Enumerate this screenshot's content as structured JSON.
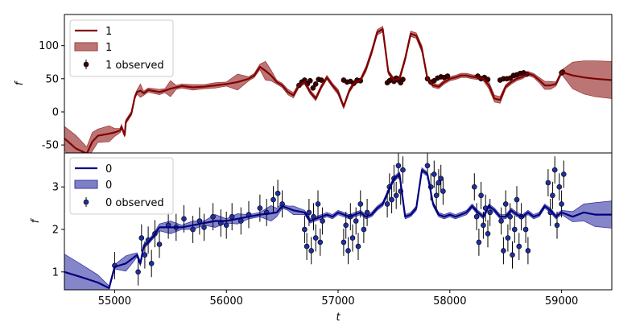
{
  "chart_data": [
    {
      "type": "line",
      "xlabel": "",
      "ylabel": "f",
      "xlim": [
        54550,
        59450
      ],
      "ylim": [
        -62,
        147
      ],
      "yticks": [
        -50,
        0,
        50,
        100
      ],
      "legend_position": "upper-left",
      "legend": [
        "1",
        "1",
        "1 observed"
      ],
      "colors": {
        "line": "#800000",
        "band": "#a03a3a",
        "points": "#400000"
      },
      "series": [
        {
          "name": "1",
          "kind": "prediction",
          "x": [
            54550,
            54650,
            54750,
            54800,
            54850,
            54950,
            55000,
            55050,
            55060,
            55090,
            55100,
            55150,
            55180,
            55200,
            55230,
            55260,
            55300,
            55400,
            55450,
            55500,
            55550,
            55600,
            55700,
            55800,
            55900,
            56000,
            56100,
            56200,
            56250,
            56300,
            56350,
            56400,
            56450,
            56500,
            56550,
            56600,
            56650,
            56700,
            56750,
            56800,
            56850,
            56900,
            56950,
            57000,
            57050,
            57100,
            57150,
            57200,
            57250,
            57300,
            57350,
            57400,
            57450,
            57500,
            57550,
            57600,
            57650,
            57700,
            57750,
            57800,
            57850,
            57900,
            57950,
            58000,
            58050,
            58100,
            58150,
            58200,
            58250,
            58300,
            58350,
            58400,
            58450,
            58500,
            58550,
            58600,
            58650,
            58700,
            58750,
            58800,
            58850,
            58900,
            58950,
            59000,
            59100,
            59200,
            59300,
            59450
          ],
          "y": [
            -40,
            -55,
            -63,
            -45,
            -36,
            -33,
            -31,
            -28,
            -22,
            -35,
            -15,
            -2,
            22,
            30,
            32,
            28,
            33,
            30,
            32,
            35,
            37,
            39,
            37,
            38,
            40,
            42,
            45,
            50,
            55,
            68,
            62,
            55,
            45,
            40,
            30,
            25,
            40,
            45,
            30,
            20,
            38,
            52,
            40,
            30,
            8,
            32,
            45,
            48,
            65,
            90,
            120,
            125,
            60,
            48,
            50,
            80,
            118,
            115,
            95,
            50,
            40,
            38,
            45,
            50,
            52,
            55,
            55,
            53,
            52,
            50,
            40,
            20,
            18,
            38,
            45,
            50,
            53,
            58,
            55,
            48,
            40,
            40,
            42,
            60,
            55,
            52,
            50,
            48
          ]
        },
        {
          "name": "1",
          "kind": "uncertainty",
          "x": [
            54550,
            54650,
            54750,
            54800,
            54850,
            54950,
            55000,
            55050,
            55060,
            55090,
            55100,
            55150,
            55180,
            55200,
            55230,
            55260,
            55300,
            55400,
            55450,
            55500,
            55550,
            55600,
            55700,
            55800,
            55900,
            56000,
            56100,
            56200,
            56250,
            56300,
            56350,
            56400,
            56450,
            56500,
            56550,
            56600,
            56650,
            56700,
            56750,
            56800,
            56850,
            56900,
            56950,
            57000,
            57050,
            57100,
            57150,
            57200,
            57250,
            57300,
            57350,
            57400,
            57450,
            57500,
            57550,
            57600,
            57650,
            57700,
            57750,
            57800,
            57850,
            57900,
            57950,
            58000,
            58050,
            58100,
            58150,
            58200,
            58250,
            58300,
            58350,
            58400,
            58450,
            58500,
            58550,
            58600,
            58650,
            58700,
            58750,
            58800,
            58850,
            58900,
            58950,
            59000,
            59100,
            59200,
            59300,
            59450
          ],
          "half_width": [
            18,
            20,
            10,
            14,
            10,
            12,
            6,
            3,
            3,
            3,
            3,
            3,
            3,
            3,
            10,
            3,
            3,
            4,
            3,
            12,
            3,
            3,
            4,
            3,
            4,
            3,
            12,
            3,
            3,
            4,
            14,
            8,
            3,
            3,
            4,
            4,
            3,
            3,
            3,
            3,
            3,
            3,
            3,
            4,
            3,
            3,
            3,
            3,
            4,
            4,
            4,
            4,
            3,
            3,
            4,
            4,
            4,
            4,
            5,
            3,
            3,
            3,
            3,
            3,
            3,
            3,
            3,
            3,
            3,
            3,
            5,
            5,
            5,
            3,
            3,
            3,
            3,
            3,
            3,
            4,
            6,
            6,
            3,
            3,
            20,
            25,
            27,
            28
          ]
        },
        {
          "name": "1 observed",
          "kind": "observed",
          "x": [
            56650,
            56675,
            56700,
            56725,
            56750,
            56775,
            56800,
            56825,
            56850,
            57050,
            57080,
            57110,
            57140,
            57170,
            57200,
            57440,
            57460,
            57480,
            57500,
            57520,
            57540,
            57560,
            57580,
            57800,
            57830,
            57860,
            57890,
            57920,
            57950,
            57980,
            58250,
            58280,
            58310,
            58340,
            58450,
            58480,
            58510,
            58540,
            58570,
            58600,
            58630,
            58660,
            58690,
            59000,
            59010
          ],
          "y": [
            40,
            45,
            48,
            42,
            47,
            36,
            42,
            49,
            48,
            48,
            45,
            46,
            43,
            48,
            47,
            44,
            47,
            49,
            46,
            51,
            48,
            44,
            49,
            50,
            45,
            47,
            51,
            53,
            52,
            54,
            54,
            50,
            52,
            49,
            48,
            50,
            50,
            51,
            55,
            56,
            58,
            59,
            57,
            59,
            60
          ]
        }
      ]
    },
    {
      "type": "line",
      "xlabel": "t",
      "ylabel": "f",
      "xlim": [
        54550,
        59450
      ],
      "ylim": [
        0.58,
        3.8
      ],
      "xticks": [
        55000,
        56000,
        57000,
        58000,
        59000
      ],
      "yticks": [
        1,
        2,
        3
      ],
      "legend_position": "upper-left",
      "legend": [
        "0",
        "0",
        "0 observed"
      ],
      "colors": {
        "line": "#000080",
        "band": "#3a3aa8",
        "points": "#1f2fa0"
      },
      "series": [
        {
          "name": "0",
          "kind": "prediction",
          "x": [
            54550,
            54700,
            54850,
            54950,
            55000,
            55100,
            55150,
            55200,
            55230,
            55260,
            55300,
            55350,
            55400,
            55500,
            55600,
            55700,
            55800,
            55900,
            56000,
            56100,
            56200,
            56300,
            56400,
            56450,
            56500,
            56550,
            56600,
            56700,
            56750,
            56800,
            56850,
            56900,
            56950,
            57000,
            57050,
            57100,
            57150,
            57200,
            57250,
            57300,
            57350,
            57400,
            57450,
            57500,
            57550,
            57600,
            57650,
            57700,
            57750,
            57800,
            57850,
            57900,
            57950,
            58000,
            58050,
            58100,
            58150,
            58200,
            58250,
            58300,
            58350,
            58400,
            58450,
            58500,
            58550,
            58600,
            58650,
            58700,
            58750,
            58800,
            58850,
            58900,
            58950,
            59000,
            59100,
            59200,
            59300,
            59450
          ],
          "y": [
            1.0,
            0.88,
            0.75,
            0.62,
            1.12,
            1.2,
            1.3,
            1.4,
            1.2,
            1.6,
            1.7,
            1.85,
            2.05,
            2.05,
            2.05,
            2.1,
            2.15,
            2.2,
            2.2,
            2.25,
            2.3,
            2.35,
            2.38,
            2.4,
            2.55,
            2.5,
            2.45,
            2.4,
            2.2,
            2.25,
            2.3,
            2.35,
            2.3,
            2.4,
            2.35,
            2.3,
            2.35,
            2.4,
            2.3,
            2.35,
            2.5,
            2.6,
            2.9,
            3.2,
            3.3,
            2.3,
            2.35,
            2.5,
            3.4,
            3.3,
            2.6,
            2.35,
            2.3,
            2.35,
            2.3,
            2.35,
            2.4,
            2.55,
            2.4,
            2.3,
            2.55,
            2.45,
            2.3,
            2.3,
            2.45,
            2.35,
            2.3,
            2.4,
            2.3,
            2.35,
            2.55,
            2.45,
            2.3,
            2.4,
            2.3,
            2.4,
            2.35,
            2.35
          ]
        },
        {
          "name": "0",
          "kind": "uncertainty",
          "x": [
            54550,
            54700,
            54850,
            54950,
            55000,
            55100,
            55150,
            55200,
            55230,
            55260,
            55300,
            55350,
            55400,
            55500,
            55600,
            55700,
            55800,
            55900,
            56000,
            56100,
            56200,
            56300,
            56400,
            56450,
            56500,
            56550,
            56600,
            56700,
            56750,
            56800,
            56850,
            56900,
            56950,
            57000,
            57050,
            57100,
            57150,
            57200,
            57250,
            57300,
            57350,
            57400,
            57450,
            57500,
            57550,
            57600,
            57650,
            57700,
            57750,
            57800,
            57850,
            57900,
            57950,
            58000,
            58050,
            58100,
            58150,
            58200,
            58250,
            58300,
            58350,
            58400,
            58450,
            58500,
            58550,
            58600,
            58650,
            58700,
            58750,
            58800,
            58850,
            58900,
            58950,
            59000,
            59100,
            59200,
            59300,
            59450
          ],
          "half_width": [
            0.42,
            0.3,
            0.18,
            0.05,
            0.05,
            0.18,
            0.12,
            0.05,
            0.05,
            0.05,
            0.05,
            0.05,
            0.08,
            0.15,
            0.05,
            0.1,
            0.05,
            0.15,
            0.05,
            0.12,
            0.05,
            0.05,
            0.18,
            0.1,
            0.05,
            0.05,
            0.1,
            0.05,
            0.05,
            0.05,
            0.05,
            0.05,
            0.05,
            0.05,
            0.05,
            0.05,
            0.05,
            0.05,
            0.05,
            0.05,
            0.05,
            0.05,
            0.05,
            0.05,
            0.05,
            0.05,
            0.05,
            0.05,
            0.05,
            0.05,
            0.05,
            0.05,
            0.05,
            0.05,
            0.05,
            0.05,
            0.05,
            0.05,
            0.05,
            0.05,
            0.05,
            0.05,
            0.05,
            0.05,
            0.05,
            0.05,
            0.05,
            0.05,
            0.05,
            0.05,
            0.05,
            0.05,
            0.05,
            0.05,
            0.12,
            0.2,
            0.28,
            0.32
          ]
        },
        {
          "name": "0 observed",
          "kind": "observed",
          "x": [
            55000,
            55210,
            55240,
            55270,
            55300,
            55330,
            55360,
            55400,
            55480,
            55550,
            55620,
            55700,
            55760,
            55800,
            55880,
            55950,
            56000,
            56050,
            56130,
            56200,
            56300,
            56360,
            56420,
            56460,
            56500,
            56700,
            56720,
            56740,
            56760,
            56780,
            56800,
            56820,
            56840,
            56860,
            57050,
            57070,
            57090,
            57110,
            57130,
            57160,
            57180,
            57200,
            57230,
            57260,
            57440,
            57460,
            57480,
            57500,
            57520,
            57540,
            57560,
            57580,
            57800,
            57830,
            57860,
            57880,
            57900,
            57920,
            57940,
            58220,
            58240,
            58260,
            58280,
            58300,
            58320,
            58340,
            58360,
            58460,
            58480,
            58500,
            58520,
            58540,
            58560,
            58580,
            58600,
            58620,
            58640,
            58680,
            58700,
            58880,
            58900,
            58920,
            58940,
            58960,
            58980,
            59000,
            59020
          ],
          "y": [
            1.15,
            1.0,
            1.8,
            1.4,
            1.75,
            1.2,
            1.9,
            1.65,
            2.1,
            2.05,
            2.25,
            2.0,
            2.2,
            2.05,
            2.3,
            2.15,
            2.1,
            2.3,
            2.2,
            2.35,
            2.5,
            2.4,
            2.7,
            2.85,
            2.6,
            2.0,
            1.6,
            2.4,
            1.5,
            2.3,
            1.8,
            2.6,
            1.7,
            2.2,
            1.7,
            2.1,
            1.5,
            2.3,
            1.8,
            2.2,
            1.6,
            2.6,
            2.0,
            2.4,
            2.6,
            3.0,
            2.7,
            3.2,
            2.8,
            3.5,
            2.9,
            3.4,
            3.5,
            3.0,
            3.3,
            2.8,
            3.1,
            3.2,
            2.9,
            3.0,
            2.3,
            1.7,
            2.8,
            2.1,
            2.5,
            1.9,
            2.4,
            2.2,
            1.5,
            2.6,
            1.8,
            2.3,
            1.4,
            2.0,
            2.7,
            1.6,
            2.3,
            2.0,
            1.5,
            3.1,
            2.4,
            2.8,
            3.4,
            2.1,
            3.0,
            2.6,
            3.3
          ]
        }
      ]
    }
  ]
}
